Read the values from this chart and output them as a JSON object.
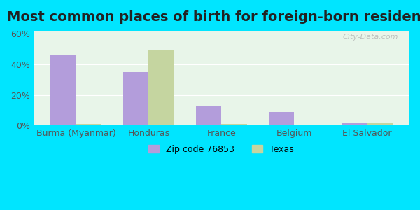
{
  "title": "Most common places of birth for foreign-born residents",
  "categories": [
    "Burma (Myanmar)",
    "Honduras",
    "France",
    "Belgium",
    "El Salvador"
  ],
  "zip_values": [
    46,
    35,
    13,
    9,
    2
  ],
  "texas_values": [
    1,
    49,
    1,
    0,
    2
  ],
  "zip_color": "#b39ddb",
  "texas_color": "#c5d5a0",
  "background_outer": "#00e5ff",
  "background_inner_top": "#e8f5e9",
  "background_inner_bottom": "#f1f8e9",
  "ylabel_ticks": [
    "0%",
    "20%",
    "40%",
    "60%"
  ],
  "ytick_values": [
    0,
    20,
    40,
    60
  ],
  "ylim": [
    0,
    62
  ],
  "bar_width": 0.35,
  "legend_zip_label": "Zip code 76853",
  "legend_texas_label": "Texas",
  "watermark": "City-Data.com",
  "title_fontsize": 14,
  "tick_fontsize": 9,
  "legend_fontsize": 9
}
